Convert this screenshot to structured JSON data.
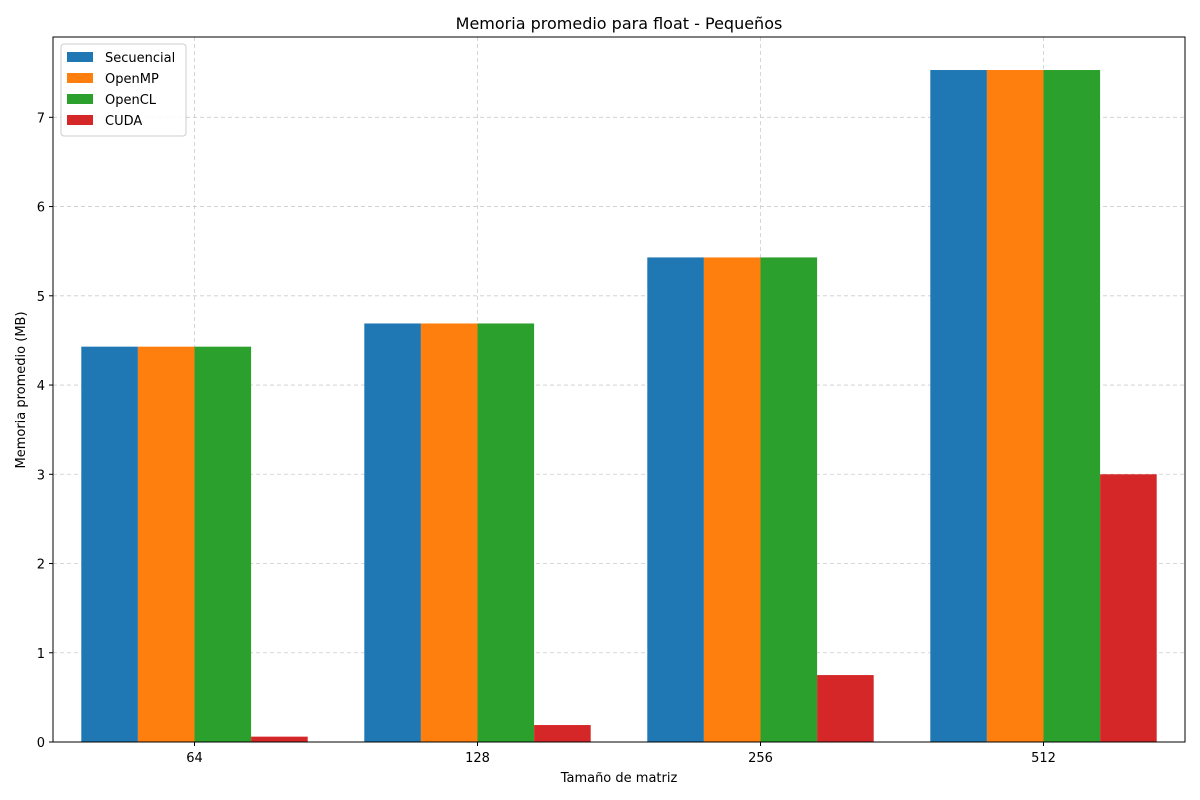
{
  "chart_data": {
    "type": "bar",
    "title": "Memoria promedio para float - Pequeños",
    "xlabel": "Tamaño de matriz",
    "ylabel": "Memoria promedio (MB)",
    "categories": [
      "64",
      "128",
      "256",
      "512"
    ],
    "ylim": [
      0,
      7.9
    ],
    "yticks": [
      0,
      1,
      2,
      3,
      4,
      5,
      6,
      7
    ],
    "grid": true,
    "legend_position": "top-left",
    "series": [
      {
        "name": "Secuencial",
        "color": "#1f77b4",
        "values": [
          4.43,
          4.69,
          5.43,
          7.53
        ]
      },
      {
        "name": "OpenMP",
        "color": "#ff7f0e",
        "values": [
          4.43,
          4.69,
          5.43,
          7.53
        ]
      },
      {
        "name": "OpenCL",
        "color": "#2ca02c",
        "values": [
          4.43,
          4.69,
          5.43,
          7.53
        ]
      },
      {
        "name": "CUDA",
        "color": "#d62728",
        "values": [
          0.06,
          0.19,
          0.75,
          3.0
        ]
      }
    ]
  }
}
